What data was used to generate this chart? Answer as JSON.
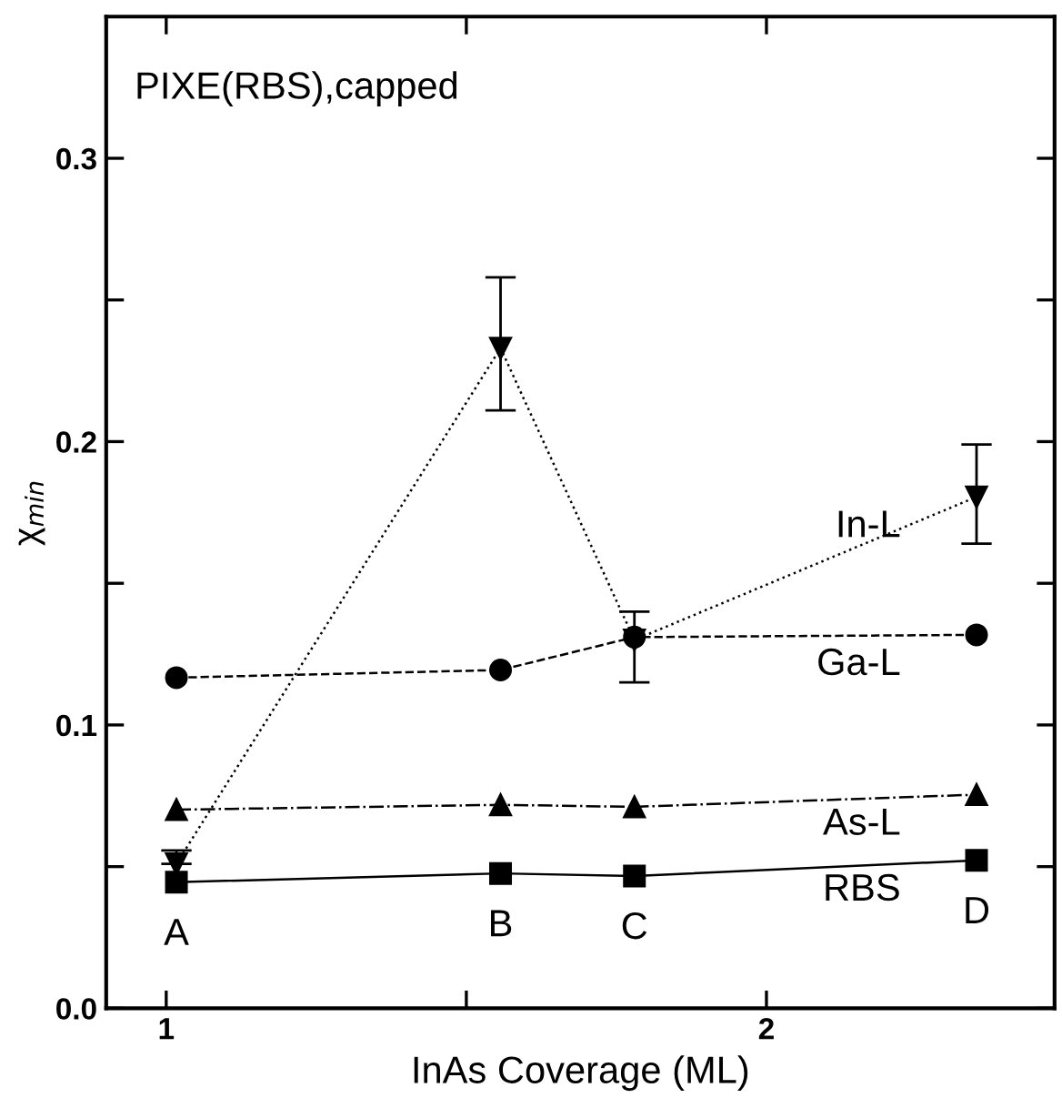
{
  "chart_data": {
    "type": "line",
    "title": "PIXE(RBS),capped",
    "xlabel": "InAs Coverage (ML)",
    "ylabel": "χ$_{min}$",
    "x": [
      1.017,
      1.557,
      1.78,
      2.35
    ],
    "series": [
      {
        "name": "In-L",
        "color": "#000000",
        "values": [
          0.051,
          0.233,
          0.13,
          0.1805
        ],
        "errors": [
          [
            0.051,
            0.0557
          ],
          [
            0.211,
            0.258
          ],
          [
            0.115,
            0.14
          ],
          [
            0.164,
            0.199
          ]
        ],
        "marker": "triangle_down",
        "line_style": "dotted"
      },
      {
        "name": "Ga-L",
        "color": "#000000",
        "values": [
          0.1167,
          0.1194,
          0.131,
          0.1318
        ],
        "marker": "circle",
        "line_style": "dashed"
      },
      {
        "name": "As-L",
        "color": "#000000",
        "values": [
          0.0701,
          0.0718,
          0.0711,
          0.0754
        ],
        "marker": "triangle",
        "line_style": "dashdot"
      },
      {
        "name": "RBS",
        "color": "#000000",
        "values": [
          0.0445,
          0.0476,
          0.0467,
          0.0522
        ],
        "value_labels": [
          "A",
          "B",
          "C",
          "D"
        ],
        "marker": "square",
        "line_style": "solid"
      }
    ],
    "xlim": [
      0.9,
      2.48
    ],
    "xticks": [
      1,
      {
        "value": 1.5,
        "label": null
      },
      2
    ],
    "ylim": [
      0,
      0.35
    ],
    "yticks": [
      {
        "value": 0,
        "label": "0.0"
      },
      {
        "value": 0.05,
        "label": null
      },
      0.1,
      {
        "value": 0.15,
        "label": null
      },
      0.2,
      {
        "value": 0.25,
        "label": null
      },
      0.3
    ],
    "grid": false,
    "legend": false
  }
}
